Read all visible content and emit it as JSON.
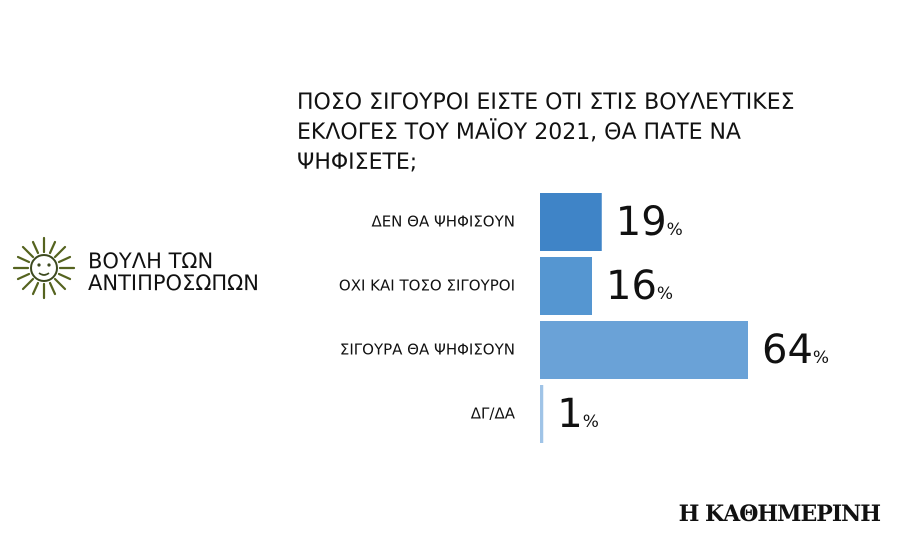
{
  "chart_data": {
    "type": "bar",
    "title": [
      "ΠΟΣΟ ΣΙΓΟΥΡΟΙ ΕΙΣΤΕ ΟΤΙ ΣΤΙΣ ΒΟΥΛΕΥΤΙΚΕΣ",
      "ΕΚΛΟΓΕΣ ΤΟΥ ΜΑΪΟΥ 2021, ΘΑ ΠΑΤΕ ΝΑ",
      "ΨΗΦΙΣΕΤΕ;"
    ],
    "categories": [
      "ΔΕΝ ΘΑ ΨΗΦΙΣΟΥΝ",
      "ΟΧΙ ΚΑΙ ΤΟΣΟ ΣΙΓΟΥΡΟΙ",
      "ΣΙΓΟΥΡΑ ΘΑ ΨΗΦΙΣΟΥΝ",
      "ΔΓ/ΔΑ"
    ],
    "values": [
      19,
      16,
      64,
      1
    ],
    "value_labels": [
      "19%",
      "16%",
      "64%",
      "1%"
    ],
    "colors": [
      "#3f84c7",
      "#5596d1",
      "#6aa2d7",
      "#a0c4e7"
    ]
  },
  "logo": [
    "ΒΟΥΛΗ ΤΩΝ",
    "ΑΝΤΙΠΡΟΣΩΠΩΝ"
  ],
  "source": "Η ΚΑΘΗΜΕΡΙΝΗ"
}
